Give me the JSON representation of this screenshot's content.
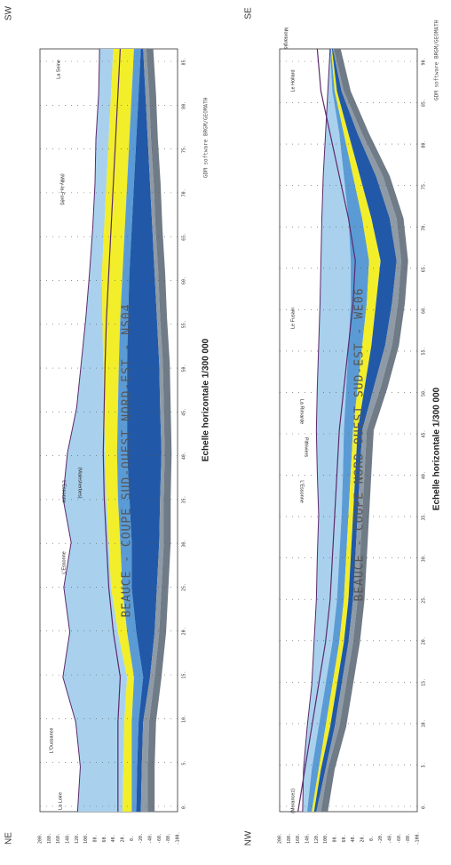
{
  "panels": [
    {
      "corner_start": "NE",
      "corner_end": "SW",
      "title": "BEAUCE - COUPE SUD-OUEST NORD-EST - NS04",
      "scale": "Echelle horizontale 1/300 000",
      "software": "GDM software BRGM/GEOMATH",
      "elevation_ticks": [
        "200.",
        "180.",
        "160.",
        "140.",
        "120.",
        "100.",
        "80.",
        "60.",
        "40.",
        "20.",
        "0.",
        "-20.",
        "-40.",
        "-60.",
        "-80.",
        "-100."
      ],
      "distance_ticks": [
        "0.",
        "5.",
        "10.",
        "15.",
        "20.",
        "25.",
        "30.",
        "35.",
        "40.",
        "45.",
        "50.",
        "55.",
        "60.",
        "65.",
        "70.",
        "75.",
        "80.",
        "85."
      ],
      "places": [
        "La Loire",
        "L'Oussance",
        "L'Essonne",
        "(Malesherbes)",
        "L'Essonne",
        "(Milly-la-Forêt)",
        "La Seine"
      ]
    },
    {
      "corner_start": "NW",
      "corner_end": "SE",
      "title": "BEAUCE - COUPE NORD-OUEST SUD-EST - WE06",
      "scale": "Echelle horizontale 1/300 000",
      "software": "GDM software BRGM/GEOMATH",
      "elevation_ticks": [
        "200.",
        "180.",
        "160.",
        "140.",
        "120.",
        "100.",
        "80.",
        "60.",
        "40.",
        "20.",
        "0.",
        "-20.",
        "-40.",
        "-60.",
        "-80.",
        "-100."
      ],
      "distance_ticks": [
        "0.",
        "5.",
        "10.",
        "15.",
        "20.",
        "25.",
        "30.",
        "35.",
        "40.",
        "45.",
        "50.",
        "55.",
        "60.",
        "65.",
        "70.",
        "75.",
        "80.",
        "85.",
        "90."
      ],
      "places": [
        "(Morancez)",
        "L'Essonne",
        "Pithiviers",
        "La Rimarde",
        "Le Fusain",
        "Le Hollard",
        "Montargis"
      ]
    }
  ]
}
